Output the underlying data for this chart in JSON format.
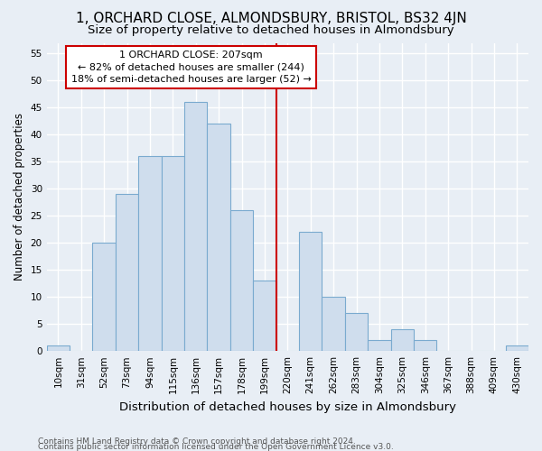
{
  "title": "1, ORCHARD CLOSE, ALMONDSBURY, BRISTOL, BS32 4JN",
  "subtitle": "Size of property relative to detached houses in Almondsbury",
  "xlabel": "Distribution of detached houses by size in Almondsbury",
  "ylabel": "Number of detached properties",
  "footer1": "Contains HM Land Registry data © Crown copyright and database right 2024.",
  "footer2": "Contains public sector information licensed under the Open Government Licence v3.0.",
  "categories": [
    "10sqm",
    "31sqm",
    "52sqm",
    "73sqm",
    "94sqm",
    "115sqm",
    "136sqm",
    "157sqm",
    "178sqm",
    "199sqm",
    "220sqm",
    "241sqm",
    "262sqm",
    "283sqm",
    "304sqm",
    "325sqm",
    "346sqm",
    "367sqm",
    "388sqm",
    "409sqm",
    "430sqm"
  ],
  "values": [
    1,
    0,
    20,
    29,
    36,
    36,
    46,
    42,
    26,
    13,
    0,
    22,
    10,
    7,
    2,
    4,
    2,
    0,
    0,
    0,
    1
  ],
  "bar_color": "#cfdded",
  "bar_edge_color": "#7aaacf",
  "bg_color": "#e8eef5",
  "grid_color": "#ffffff",
  "vline_color": "#cc0000",
  "annotation_text": "1 ORCHARD CLOSE: 207sqm\n← 82% of detached houses are smaller (244)\n18% of semi-detached houses are larger (52) →",
  "annotation_box_color": "#cc0000",
  "ylim": [
    0,
    57
  ],
  "yticks": [
    0,
    5,
    10,
    15,
    20,
    25,
    30,
    35,
    40,
    45,
    50,
    55
  ],
  "title_fontsize": 11,
  "subtitle_fontsize": 9.5,
  "xlabel_fontsize": 9.5,
  "ylabel_fontsize": 8.5,
  "tick_fontsize": 7.5,
  "annotation_fontsize": 8,
  "footer_fontsize": 6.5
}
